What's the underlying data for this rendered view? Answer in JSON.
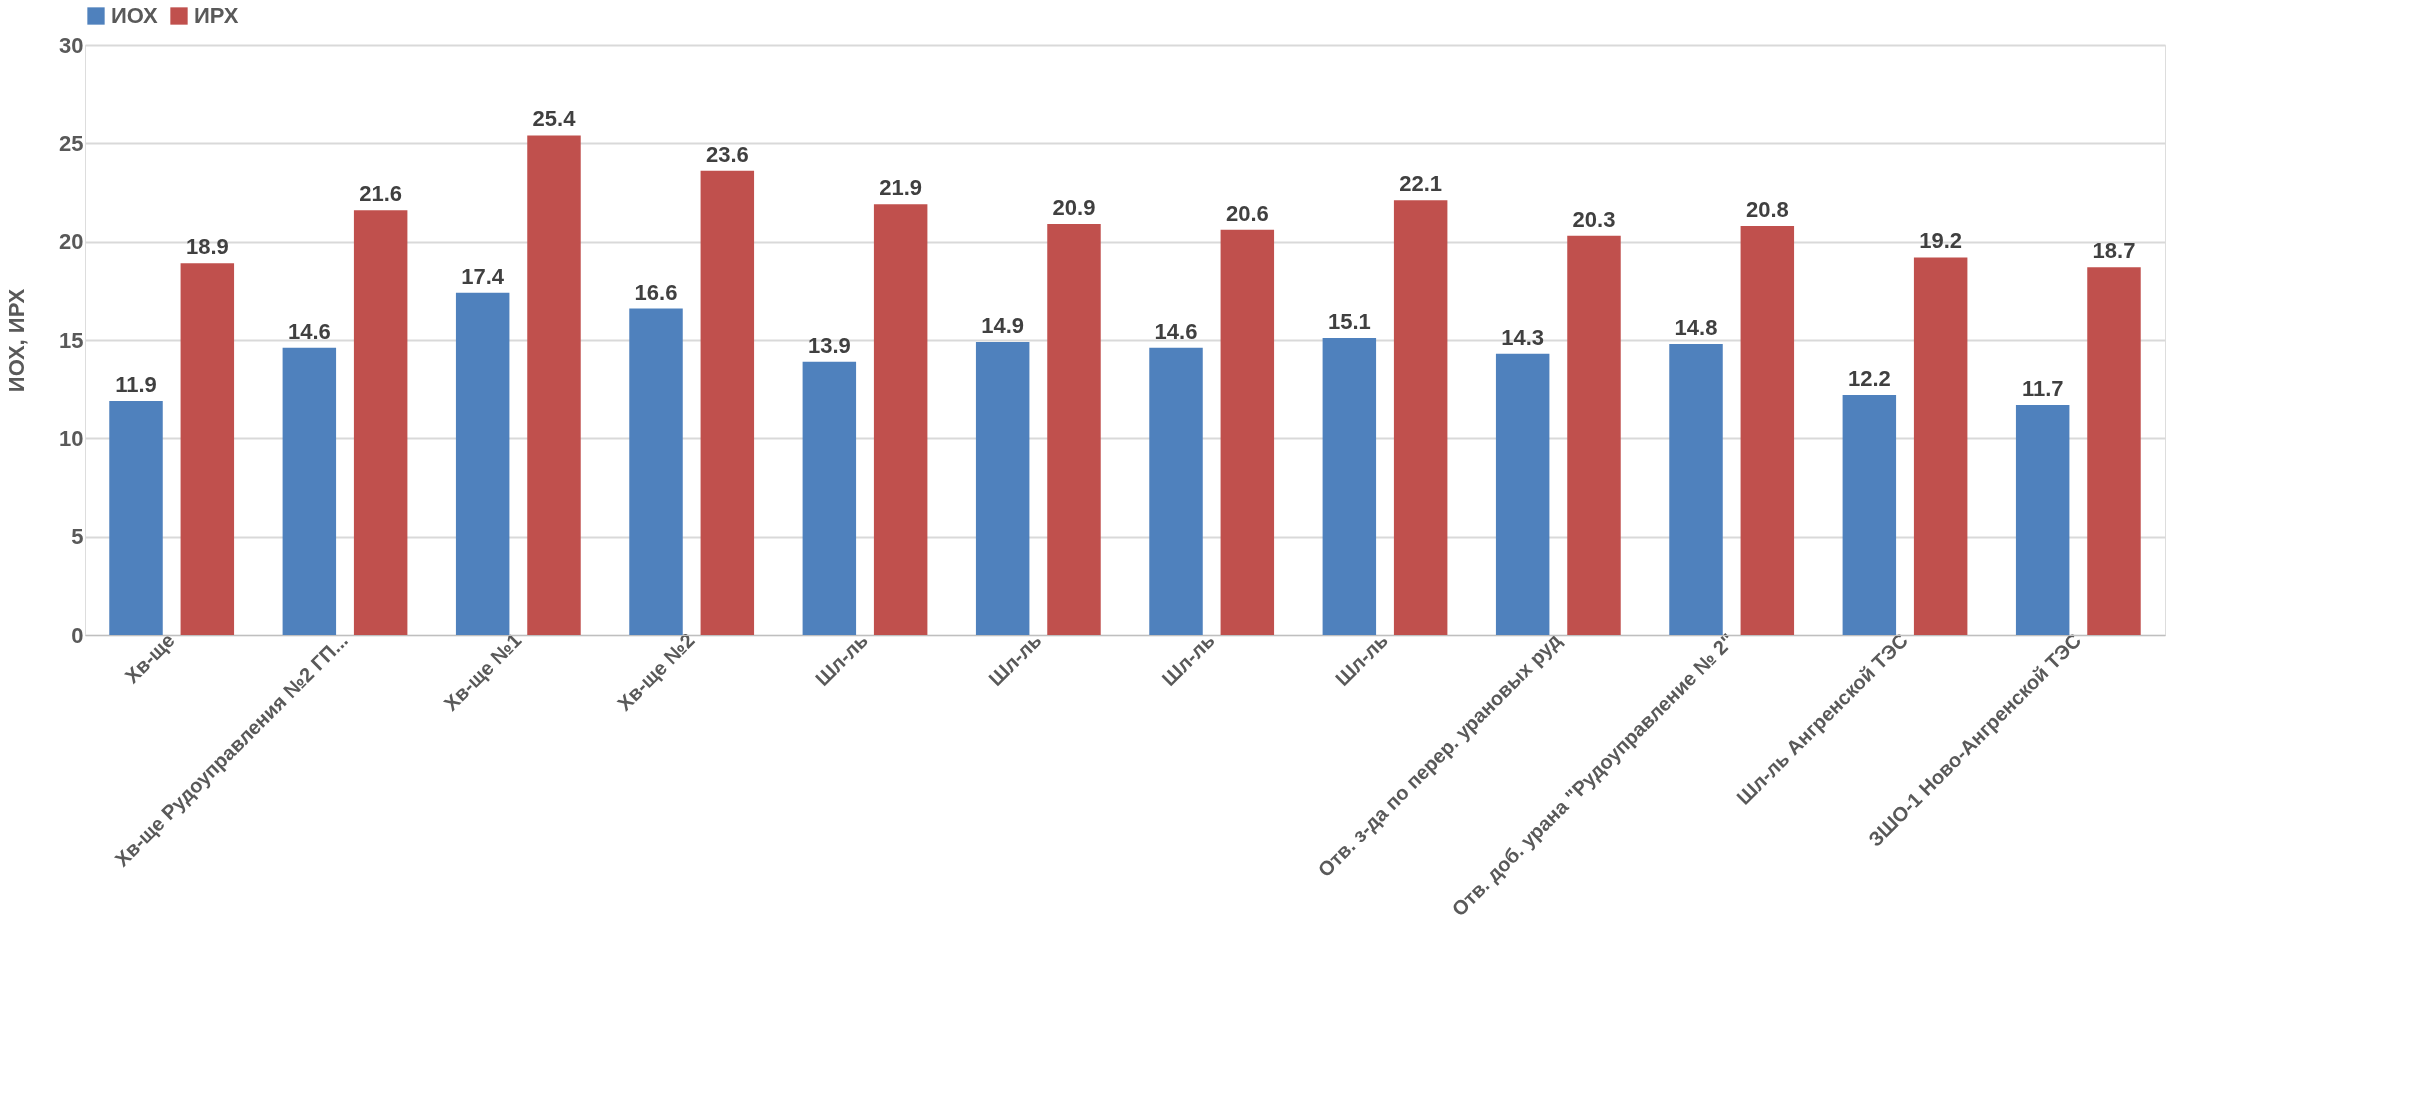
{
  "chart_data": {
    "type": "bar",
    "ylabel": "ИОХ, ИРХ",
    "categories": [
      "Хв-ще",
      "Хв-ще Рудоуправления №2 ГП...",
      "Хв-ще №1",
      "Хв-ще №2",
      "Шл-ль",
      "Шл-ль",
      "Шл-ль",
      "Шл-ль",
      "Отв. з-да по перер. урановых руд",
      "Отв. доб. урана \"Рудоуправление № 2\"",
      "Шл-ль Ангренской ТЭС",
      "ЗШО-1 Ново-Ангренской ТЭС"
    ],
    "series": [
      {
        "name": "ИОХ",
        "color": "#4f81bd",
        "values": [
          11.9,
          14.6,
          17.4,
          16.6,
          13.9,
          14.9,
          14.6,
          15.1,
          14.3,
          14.8,
          12.2,
          11.7
        ]
      },
      {
        "name": "ИРХ",
        "color": "#c0504d",
        "values": [
          18.9,
          21.6,
          25.4,
          23.6,
          21.9,
          20.9,
          20.6,
          22.1,
          20.3,
          20.8,
          19.2,
          18.7
        ]
      }
    ],
    "ylim": [
      0,
      30
    ],
    "yticks": [
      0,
      5,
      10,
      15,
      20,
      25,
      30
    ],
    "grid": "y",
    "legend": "top",
    "data_labels": true
  }
}
